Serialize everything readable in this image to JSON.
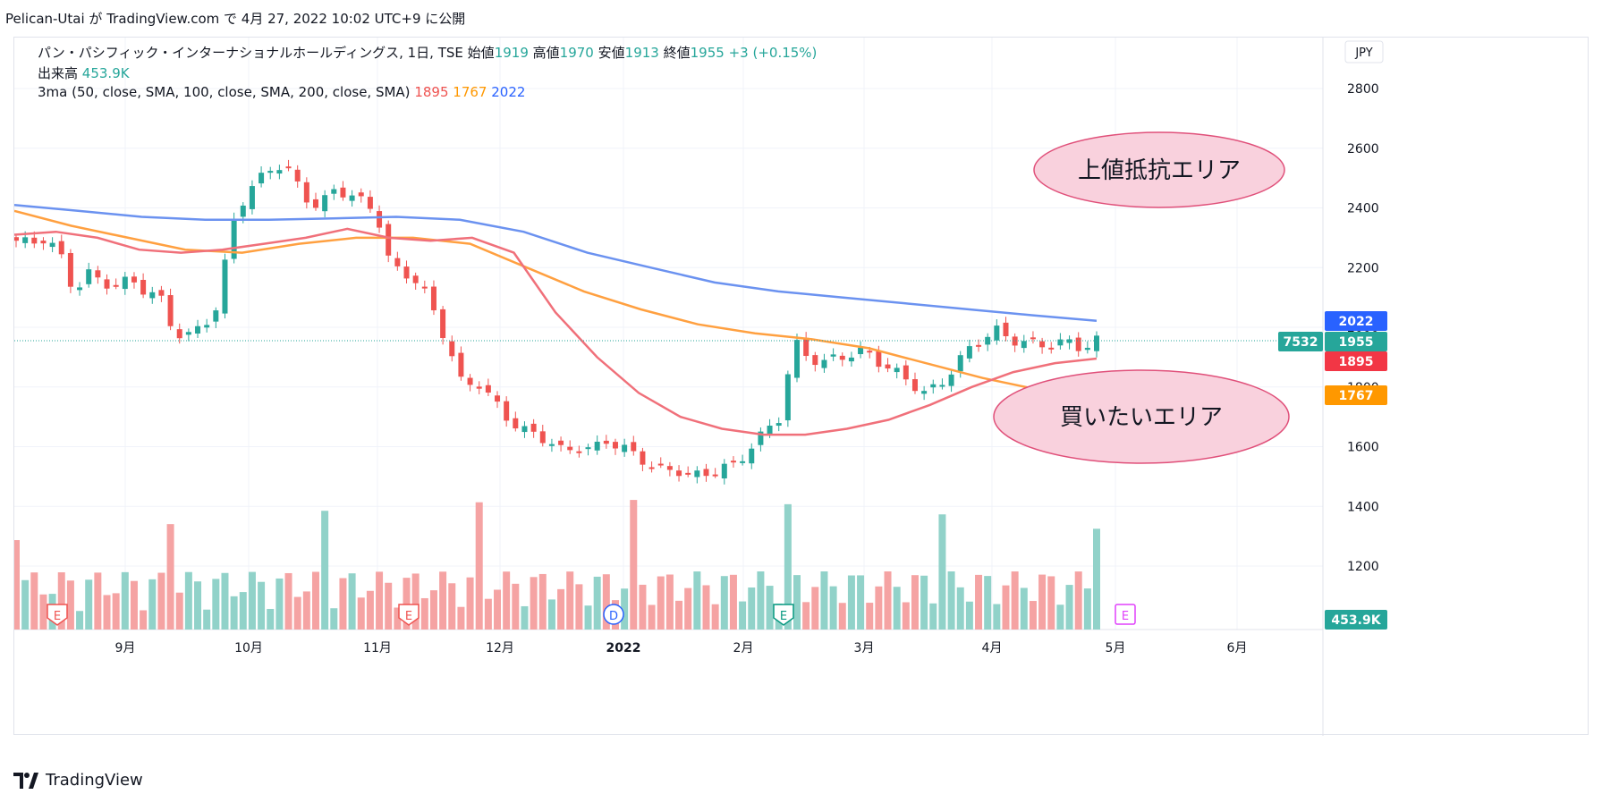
{
  "attribution": "Pelican-Utai が TradingView.com で 4月 27, 2022 10:02 UTC+9 に公開",
  "legend": {
    "symbol": "パン・パシフィック・インターナショナルホールディングス, 1日, TSE",
    "open_label": "始値",
    "open": "1919",
    "high_label": "高値",
    "high": "1970",
    "low_label": "安値",
    "low": "1913",
    "close_label": "終値",
    "close": "1955",
    "change": "+3 (+0.15%)",
    "volume_label": "出来高",
    "volume": "453.9K",
    "ma_label": "3ma (50, close, SMA, 100, close, SMA, 200, close, SMA)",
    "ma50": "1895",
    "ma100": "1767",
    "ma200": "2022"
  },
  "currency": "JPY",
  "price_tags": {
    "ma200": "2022",
    "close": "1955",
    "countdown": "7532",
    "ma50": "1895",
    "ma100": "1767",
    "volume": "453.9K"
  },
  "annotations": {
    "resistance": "上値抵抗エリア",
    "buy": "買いたいエリア"
  },
  "event_markers": [
    "E",
    "E",
    "D",
    "E",
    "E"
  ],
  "footer_brand": "TradingView",
  "colors": {
    "up": "#26a69a",
    "down": "#ef5350",
    "ma50": "#f0707a",
    "ma100": "#ffa040",
    "ma200": "#6b92f0",
    "vol_up": "#91d2c9",
    "vol_down": "#f5a3a3",
    "ellipse_fill": "#f9d1dd",
    "ellipse_stroke": "#e0507a"
  },
  "chart_data": {
    "type": "candlestick",
    "title": "パン・パシフィック・インターナショナルホールディングス, 1日, TSE",
    "y_ticks": [
      1200,
      1400,
      1600,
      1800,
      2000,
      2200,
      2400,
      2600,
      2800
    ],
    "ylim": [
      1000,
      2900
    ],
    "x_labels": [
      "9月",
      "10月",
      "11月",
      "12月",
      "2022",
      "2月",
      "3月",
      "4月",
      "5月",
      "6月"
    ],
    "close_series_approx": [
      2290,
      2280,
      2300,
      2250,
      2120,
      2180,
      2150,
      2140,
      2160,
      2120,
      2100,
      1980,
      1970,
      2010,
      2070,
      2350,
      2450,
      2500,
      2550,
      2520,
      2440,
      2400,
      2460,
      2450,
      2420,
      2390,
      2200,
      2180,
      2150,
      2050,
      1940,
      1800,
      1820,
      1760,
      1700,
      1660,
      1640,
      1620,
      1580,
      1600,
      1590,
      1620,
      1600,
      1570,
      1540,
      1520,
      1520,
      1500,
      1510,
      1530,
      1540,
      1600,
      1650,
      1700,
      1950,
      1900,
      1880,
      1900,
      1910,
      1920,
      1880,
      1850,
      1820,
      1780,
      1800,
      1860,
      1920,
      1960,
      1990,
      1960,
      1950,
      1940,
      1945,
      1950,
      1930,
      1955
    ],
    "ma50_approx": [
      2310,
      2320,
      2300,
      2260,
      2250,
      2260,
      2280,
      2300,
      2330,
      2300,
      2290,
      2300,
      2250,
      2050,
      1900,
      1780,
      1700,
      1660,
      1640,
      1640,
      1660,
      1690,
      1740,
      1800,
      1850,
      1880,
      1895
    ],
    "ma100_approx": [
      2390,
      2340,
      2300,
      2260,
      2250,
      2280,
      2300,
      2300,
      2280,
      2200,
      2120,
      2060,
      2010,
      1980,
      1960,
      1930,
      1880,
      1830,
      1790,
      1767
    ],
    "ma200_approx": [
      2410,
      2390,
      2370,
      2360,
      2360,
      2365,
      2370,
      2360,
      2320,
      2250,
      2200,
      2150,
      2120,
      2100,
      2080,
      2060,
      2040,
      2022
    ],
    "volume_series": "bars (K), approx relative heights",
    "last_volume": "453.9K"
  }
}
